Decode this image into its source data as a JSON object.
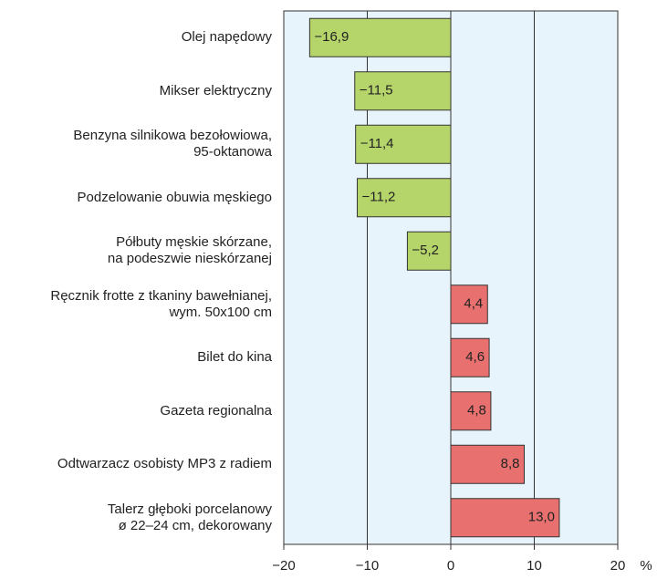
{
  "chart_data": {
    "type": "bar",
    "orientation": "horizontal",
    "categories": [
      "Olej napędowy",
      "Mikser elektryczny",
      "Benzyna silnikowa bezołowiowa,\n95-oktanowa",
      "Podzelowanie obuwia męskiego",
      "Półbuty męskie skórzane,\nna podeszwie nieskórzanej",
      "Ręcznik frotte z tkaniny bawełnianej,\nwym. 50x100 cm",
      "Bilet do kina",
      "Gazeta regionalna",
      "Odtwarzacz osobisty MP3 z radiem",
      "Talerz głęboki porcelanowy\nø 22–24 cm, dekorowany"
    ],
    "values": [
      -16.9,
      -11.5,
      -11.4,
      -11.2,
      -5.2,
      4.4,
      4.6,
      4.8,
      8.8,
      13.0
    ],
    "value_labels": [
      "−16,9",
      "−11,5",
      "−11,4",
      "−11,2",
      "−5,2",
      "4,4",
      "4,6",
      "4,8",
      "8,8",
      "13,0"
    ],
    "negative_color": "#b5d56a",
    "positive_color": "#e8706f",
    "xlim": [
      -20,
      20
    ],
    "xticks": [
      {
        "value": -20,
        "label": "−20"
      },
      {
        "value": -10,
        "label": "−10"
      },
      0,
      10,
      20
    ],
    "x_label": "%",
    "grid": true
  }
}
